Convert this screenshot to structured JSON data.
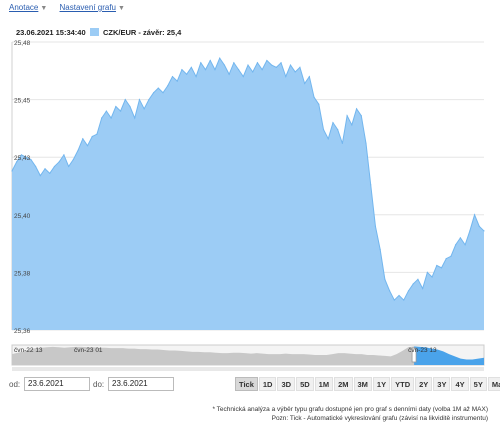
{
  "toolbar": {
    "annotations_label": "Anotace",
    "settings_label": "Nastavení grafu"
  },
  "legend": {
    "timestamp": "23.06.2021 15:34:40",
    "series_label": "CZK/EUR - závěr: 25,4"
  },
  "colors": {
    "area_fill": "#9cccf5",
    "area_line": "#73b6ee",
    "grid": "#e6e6e6",
    "nav_fill": "#c8c8c8",
    "nav_selected": "#4aa3ea"
  },
  "chart_data": {
    "type": "area",
    "title": "",
    "xlabel": "",
    "ylabel": "",
    "ylim": [
      25.355,
      25.48
    ],
    "yticks": [
      "25,48",
      "25,45",
      "25,43",
      "25,40",
      "25,38",
      "25,36"
    ],
    "ytick_values": [
      25.48,
      25.455,
      25.43,
      25.405,
      25.38,
      25.355
    ],
    "grid": true,
    "series": [
      {
        "name": "CZK/EUR - závěr: 25,4",
        "x": [
          0,
          1,
          2,
          3,
          4,
          5,
          6,
          7,
          8,
          9,
          10,
          11,
          12,
          13,
          14,
          15,
          16,
          17,
          18,
          19,
          20,
          21,
          22,
          23,
          24,
          25,
          26,
          27,
          28,
          29,
          30,
          31,
          32,
          33,
          34,
          35,
          36,
          37,
          38,
          39,
          40,
          41,
          42,
          43,
          44,
          45,
          46,
          47,
          48,
          49,
          50,
          51,
          52,
          53,
          54,
          55,
          56,
          57,
          58,
          59,
          60,
          61,
          62,
          63,
          64,
          65,
          66,
          67,
          68,
          69,
          70,
          71,
          72,
          73,
          74,
          75,
          76,
          77,
          78,
          79,
          80,
          81,
          82,
          83,
          84,
          85,
          86,
          87,
          88,
          89,
          90,
          91,
          92,
          93,
          94,
          95,
          96,
          97,
          98,
          99,
          100
        ],
        "values": [
          25.424,
          25.428,
          25.431,
          25.43,
          25.429,
          25.426,
          25.422,
          25.425,
          25.423,
          25.426,
          25.428,
          25.431,
          25.426,
          25.429,
          25.433,
          25.438,
          25.435,
          25.439,
          25.44,
          25.447,
          25.45,
          25.447,
          25.452,
          25.45,
          25.455,
          25.452,
          25.447,
          25.455,
          25.451,
          25.455,
          25.458,
          25.46,
          25.458,
          25.461,
          25.465,
          25.463,
          25.468,
          25.466,
          25.469,
          25.465,
          25.471,
          25.468,
          25.472,
          25.468,
          25.473,
          25.47,
          25.466,
          25.471,
          25.468,
          25.465,
          25.47,
          25.467,
          25.471,
          25.468,
          25.472,
          25.47,
          25.469,
          25.471,
          25.465,
          25.47,
          25.467,
          25.469,
          25.462,
          25.465,
          25.456,
          25.453,
          25.442,
          25.438,
          25.445,
          25.442,
          25.436,
          25.448,
          25.444,
          25.451,
          25.448,
          25.436,
          25.418,
          25.4,
          25.39,
          25.377,
          25.372,
          25.368,
          25.37,
          25.368,
          25.372,
          25.375,
          25.377,
          25.373,
          25.38,
          25.378,
          25.383,
          25.382,
          25.386,
          25.387,
          25.392,
          25.395,
          25.392,
          25.398,
          25.405,
          25.4,
          25.398
        ]
      }
    ]
  },
  "navigator": {
    "labels": [
      "čvn-22 13",
      "čvn-23 01",
      "čvn-23 13"
    ],
    "values": [
      25.43,
      25.433,
      25.436,
      25.44,
      25.443,
      25.444,
      25.445,
      25.446,
      25.445,
      25.444,
      25.445,
      25.446,
      25.446,
      25.445,
      25.445,
      25.444,
      25.444,
      25.443,
      25.443,
      25.443,
      25.442,
      25.442,
      25.441,
      25.441,
      25.44,
      25.44,
      25.439,
      25.438,
      25.438,
      25.437,
      25.436,
      25.435,
      25.435,
      25.434,
      25.434,
      25.433,
      25.432,
      25.432,
      25.433,
      25.433,
      25.432,
      25.431,
      25.432,
      25.431,
      25.43,
      25.43,
      25.43,
      25.431,
      25.43,
      25.43,
      25.43,
      25.429,
      25.428,
      25.428,
      25.428,
      25.43,
      25.432,
      25.432,
      25.431,
      25.43,
      25.43,
      25.428,
      25.428,
      25.427,
      25.426,
      25.425,
      25.43,
      25.437,
      25.445,
      25.447,
      25.446,
      25.445,
      25.442,
      25.44,
      25.436,
      25.43,
      25.425,
      25.42,
      25.418,
      25.418,
      25.42,
      25.422
    ],
    "selected_from": 0.85
  },
  "controls": {
    "from_label": "od:",
    "from_value": "23.6.2021",
    "to_label": "do:",
    "to_value": "23.6.2021",
    "ranges": [
      {
        "label": "Tick",
        "active": true
      },
      {
        "label": "1D",
        "active": false
      },
      {
        "label": "3D",
        "active": false
      },
      {
        "label": "5D",
        "active": false
      },
      {
        "label": "1M",
        "active": false
      },
      {
        "label": "2M",
        "active": false
      },
      {
        "label": "3M",
        "active": false
      },
      {
        "label": "1Y",
        "active": false
      },
      {
        "label": "YTD",
        "active": false
      },
      {
        "label": "2Y",
        "active": false
      },
      {
        "label": "3Y",
        "active": false
      },
      {
        "label": "4Y",
        "active": false
      },
      {
        "label": "5Y",
        "active": false
      },
      {
        "label": "Max",
        "active": false
      }
    ]
  },
  "footnotes": {
    "line1": "* Technická analýza a výběr typu grafu dostupné jen pro graf s denními daty (volba 1M až MAX)",
    "line2": "Pozn: Tick - Automatické vykreslování grafu (závisí na likviditě instrumentu)"
  }
}
